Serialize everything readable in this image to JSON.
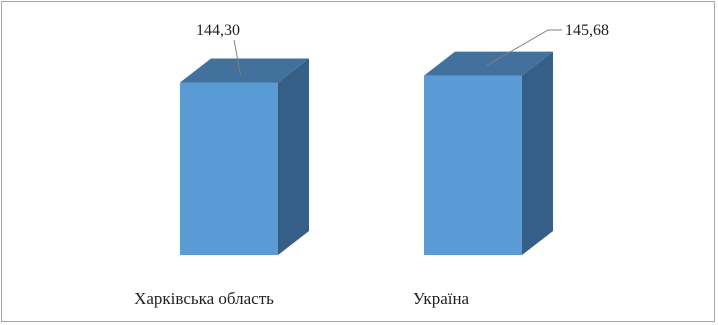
{
  "chart_data": {
    "type": "bar",
    "categories": [
      "Харківська область",
      "Україна"
    ],
    "values": [
      144.3,
      145.68
    ],
    "value_labels": [
      "144,30",
      "145,68"
    ],
    "title": "",
    "xlabel": "",
    "ylabel": "",
    "three_d": true,
    "grid": false,
    "legend": "none",
    "colors": {
      "front": "#5b9bd5",
      "top": "#41719c",
      "side": "#355f86",
      "border": "#a6a6a6",
      "leader": "#7f7f7f"
    }
  }
}
